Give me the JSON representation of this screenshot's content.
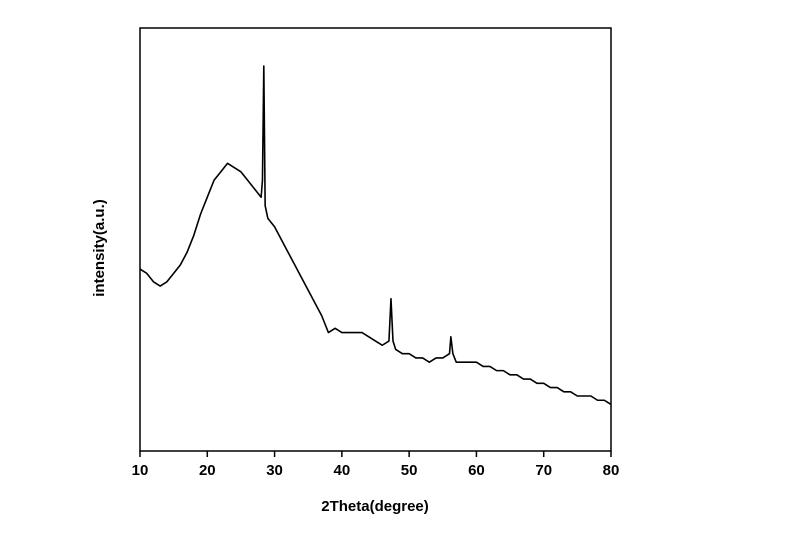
{
  "chart_data": {
    "type": "line",
    "x_label": "2Theta(degree)",
    "y_label": "intensity(a.u.)",
    "xlim": [
      10,
      80
    ],
    "xticks": [
      10,
      20,
      30,
      40,
      50,
      60,
      70,
      80
    ],
    "ylim": [
      0,
      100
    ],
    "series": [
      {
        "color": "#000000",
        "x": [
          10,
          11,
          12,
          13,
          14,
          15,
          16,
          17,
          18,
          19,
          20,
          21,
          22,
          23,
          24,
          25,
          26,
          27,
          28,
          28.2,
          28.4,
          28.6,
          29,
          30,
          31,
          32,
          33,
          34,
          35,
          36,
          37,
          38,
          39,
          40,
          41,
          42,
          43,
          44,
          45,
          46,
          47,
          47.3,
          47.6,
          48,
          49,
          50,
          51,
          52,
          53,
          54,
          55,
          56,
          56.2,
          56.5,
          57,
          58,
          59,
          60,
          61,
          62,
          63,
          64,
          65,
          66,
          67,
          68,
          69,
          70,
          71,
          72,
          73,
          74,
          75,
          76,
          77,
          78,
          79,
          80
        ],
        "values": [
          43,
          42,
          40,
          39,
          40,
          42,
          44,
          47,
          51,
          56,
          60,
          64,
          66,
          68,
          67,
          66,
          64,
          62,
          60,
          64,
          91,
          58,
          55,
          53,
          50,
          47,
          44,
          41,
          38,
          35,
          32,
          28,
          29,
          28,
          28,
          28,
          28,
          27,
          26,
          25,
          26,
          36,
          26,
          24,
          23,
          23,
          22,
          22,
          21,
          22,
          22,
          23,
          27,
          23,
          21,
          21,
          21,
          21,
          20,
          20,
          19,
          19,
          18,
          18,
          17,
          17,
          16,
          16,
          15,
          15,
          14,
          14,
          13,
          13,
          13,
          12,
          12,
          11
        ]
      }
    ]
  }
}
